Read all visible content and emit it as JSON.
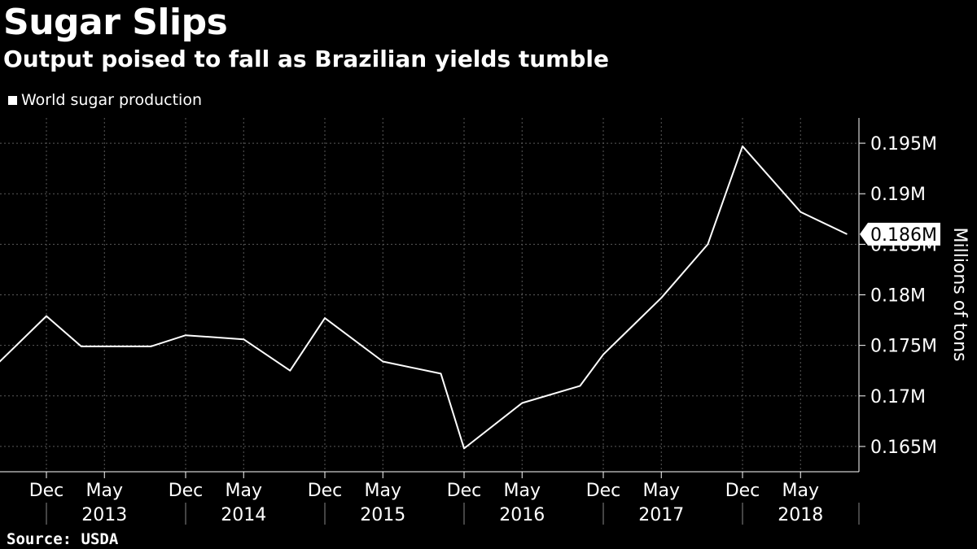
{
  "title": "Sugar Slips",
  "subtitle": "Output poised to fall as Brazilian yields tumble",
  "source": "Source: USDA",
  "chart_data": {
    "type": "line",
    "ylabel": "Millions of tons",
    "ylim": [
      0.1625,
      0.1975
    ],
    "y_ticks": [
      {
        "value": 0.165,
        "label": "0.165M"
      },
      {
        "value": 0.17,
        "label": "0.17M"
      },
      {
        "value": 0.175,
        "label": "0.175M"
      },
      {
        "value": 0.18,
        "label": "0.18M"
      },
      {
        "value": 0.185,
        "label": "0.185M"
      },
      {
        "value": 0.19,
        "label": "0.19M"
      },
      {
        "value": 0.195,
        "label": "0.195M"
      }
    ],
    "x_month_ticks": [
      {
        "date": "2012-12",
        "label": "Dec"
      },
      {
        "date": "2013-05",
        "label": "May"
      },
      {
        "date": "2013-12",
        "label": "Dec"
      },
      {
        "date": "2014-05",
        "label": "May"
      },
      {
        "date": "2014-12",
        "label": "Dec"
      },
      {
        "date": "2015-05",
        "label": "May"
      },
      {
        "date": "2015-12",
        "label": "Dec"
      },
      {
        "date": "2016-05",
        "label": "May"
      },
      {
        "date": "2016-12",
        "label": "Dec"
      },
      {
        "date": "2017-05",
        "label": "May"
      },
      {
        "date": "2017-12",
        "label": "Dec"
      },
      {
        "date": "2018-05",
        "label": "May"
      }
    ],
    "x_year_labels": [
      {
        "date": "2013-05",
        "label": "2013"
      },
      {
        "date": "2014-05",
        "label": "2014"
      },
      {
        "date": "2015-05",
        "label": "2015"
      },
      {
        "date": "2016-05",
        "label": "2016"
      },
      {
        "date": "2017-05",
        "label": "2017"
      },
      {
        "date": "2018-05",
        "label": "2018"
      }
    ],
    "series": [
      {
        "name": "World sugar production",
        "color": "#ffffff",
        "points": [
          {
            "x": "2012-07",
            "y": 0.1723
          },
          {
            "x": "2012-12",
            "y": 0.1779
          },
          {
            "x": "2013-03",
            "y": 0.1749
          },
          {
            "x": "2013-09",
            "y": 0.1749
          },
          {
            "x": "2013-12",
            "y": 0.176
          },
          {
            "x": "2014-05",
            "y": 0.1756
          },
          {
            "x": "2014-09",
            "y": 0.1725
          },
          {
            "x": "2014-12",
            "y": 0.1777
          },
          {
            "x": "2015-05",
            "y": 0.1734
          },
          {
            "x": "2015-10",
            "y": 0.1722
          },
          {
            "x": "2015-12",
            "y": 0.1648
          },
          {
            "x": "2016-05",
            "y": 0.1693
          },
          {
            "x": "2016-10",
            "y": 0.171
          },
          {
            "x": "2016-12",
            "y": 0.1741
          },
          {
            "x": "2017-05",
            "y": 0.1797
          },
          {
            "x": "2017-09",
            "y": 0.185
          },
          {
            "x": "2017-12",
            "y": 0.1947
          },
          {
            "x": "2018-05",
            "y": 0.1882
          },
          {
            "x": "2018-09",
            "y": 0.186
          }
        ],
        "last_value_label": "0.186M"
      }
    ],
    "grid": true,
    "legend": "top-left"
  }
}
